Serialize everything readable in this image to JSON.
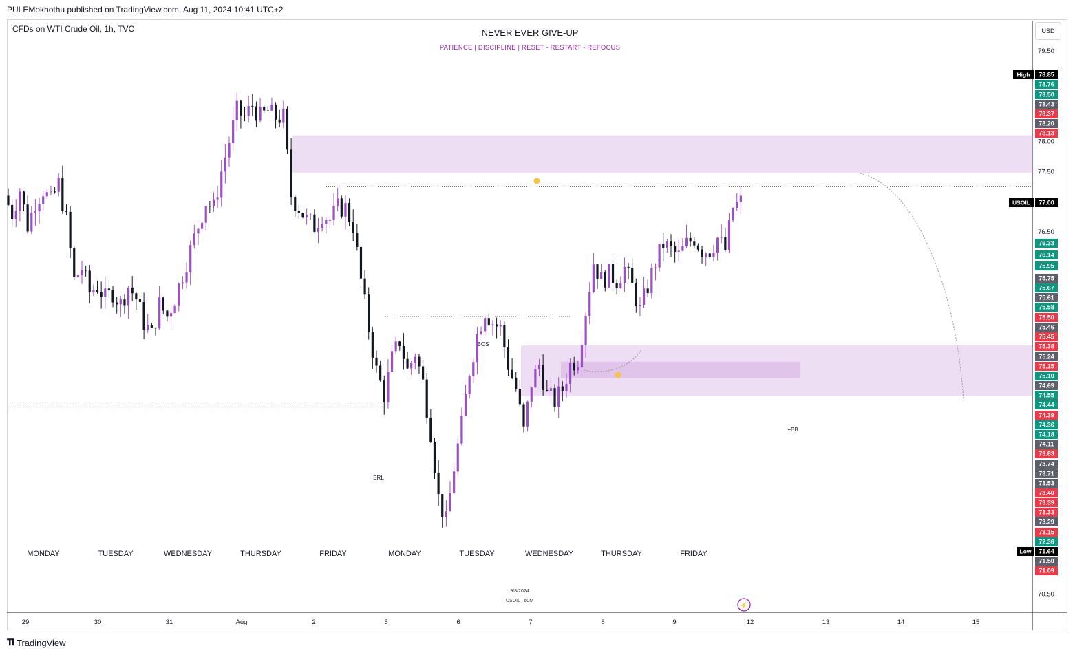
{
  "publisher": "PULEMokhothu published on TradingView.com, Aug 11, 2024 10:41 UTC+2",
  "symbol_line": "CFDs on WTI Crude Oil, 1h, TVC",
  "title": "NEVER EVER GIVE-UP",
  "subtitle": "PATIENCE   |   DISCIPLINE   |   RESET - RESTART - REFOCUS",
  "currency": "USD",
  "footer_brand": "TradingView",
  "colors": {
    "bull": "#9c4fc4",
    "bear": "#131722",
    "zone": "#e8d3ef",
    "zone_dark": "#dcbde6",
    "green": "#089981",
    "red": "#f23645",
    "gray": "#5d606b",
    "black": "#000000"
  },
  "chart_data": {
    "type": "candlestick",
    "interval": "1h",
    "ylim": [
      70.2,
      80.0
    ],
    "price_axis_ticks": [
      "79.50",
      "78.00",
      "77.50",
      "76.50",
      "70.50"
    ],
    "time_axis_ticks": [
      "29",
      "30",
      "31",
      "Aug",
      "2",
      "5",
      "6",
      "7",
      "8",
      "9",
      "12",
      "13",
      "14",
      "15"
    ],
    "day_labels": [
      "MONDAY",
      "TUESDAY",
      "WEDNESDAY",
      "THURSDAY",
      "FRIDAY",
      "MONDAY",
      "TUESDAY",
      "WEDNESDAY",
      "THURSDAY",
      "FRIDAY"
    ],
    "annotations": {
      "bos": "BOS",
      "erl": "ERL",
      "bb": "+BB",
      "date_stamp": "9/8/2024",
      "stamp_sub": "USOIL | 60M"
    },
    "zones": [
      {
        "from": 77.48,
        "to": 78.1
      },
      {
        "from": 73.78,
        "to": 74.62
      },
      {
        "from": 74.08,
        "to": 74.35
      }
    ],
    "levels": {
      "bos": 75.1,
      "erl": 73.6,
      "high_line": 77.25
    },
    "price_labels": [
      {
        "text": "High",
        "value": "78.85",
        "color": "black"
      },
      {
        "value": "78.76",
        "color": "green"
      },
      {
        "value": "78.50",
        "color": "green"
      },
      {
        "value": "78.43",
        "color": "gray"
      },
      {
        "value": "78.37",
        "color": "red"
      },
      {
        "value": "78.20",
        "color": "gray"
      },
      {
        "value": "78.13",
        "color": "red"
      },
      {
        "text": "USOIL",
        "value": "77.00",
        "color": "black"
      },
      {
        "value": "76.33",
        "color": "green"
      },
      {
        "value": "76.14",
        "color": "green"
      },
      {
        "value": "75.95",
        "color": "green"
      },
      {
        "value": "75.75",
        "color": "gray"
      },
      {
        "value": "75.67",
        "color": "green"
      },
      {
        "value": "75.61",
        "color": "gray"
      },
      {
        "value": "75.58",
        "color": "green"
      },
      {
        "value": "75.50",
        "color": "red"
      },
      {
        "value": "75.46",
        "color": "gray"
      },
      {
        "value": "75.45",
        "color": "red"
      },
      {
        "value": "75.38",
        "color": "red"
      },
      {
        "value": "75.24",
        "color": "gray"
      },
      {
        "value": "75.15",
        "color": "red"
      },
      {
        "value": "75.10",
        "color": "green"
      },
      {
        "value": "74.69",
        "color": "gray"
      },
      {
        "value": "74.55",
        "color": "green"
      },
      {
        "value": "74.44",
        "color": "green"
      },
      {
        "value": "74.39",
        "color": "red"
      },
      {
        "value": "74.36",
        "color": "green"
      },
      {
        "value": "74.18",
        "color": "green"
      },
      {
        "value": "74.11",
        "color": "gray"
      },
      {
        "value": "73.83",
        "color": "red"
      },
      {
        "value": "73.74",
        "color": "gray"
      },
      {
        "value": "73.71",
        "color": "gray"
      },
      {
        "value": "73.53",
        "color": "gray"
      },
      {
        "value": "73.40",
        "color": "red"
      },
      {
        "value": "73.39",
        "color": "red"
      },
      {
        "value": "73.33",
        "color": "red"
      },
      {
        "value": "73.29",
        "color": "gray"
      },
      {
        "value": "73.15",
        "color": "red"
      },
      {
        "value": "72.36",
        "color": "green"
      },
      {
        "text": "Low",
        "value": "71.64",
        "color": "black"
      },
      {
        "value": "71.50",
        "color": "gray"
      },
      {
        "value": "71.09",
        "color": "red"
      }
    ],
    "close_path": [
      [
        0,
        77.1
      ],
      [
        2,
        76.8
      ],
      [
        4,
        77.2
      ],
      [
        6,
        76.6
      ],
      [
        8,
        77.0
      ],
      [
        10,
        77.2
      ],
      [
        12,
        77.0
      ],
      [
        14,
        77.3
      ],
      [
        16,
        76.7
      ],
      [
        18,
        75.7
      ],
      [
        20,
        75.9
      ],
      [
        22,
        75.5
      ],
      [
        24,
        75.6
      ],
      [
        26,
        75.4
      ],
      [
        28,
        75.5
      ],
      [
        30,
        75.3
      ],
      [
        32,
        75.6
      ],
      [
        34,
        75.4
      ],
      [
        36,
        75.0
      ],
      [
        38,
        74.8
      ],
      [
        40,
        75.3
      ],
      [
        42,
        75.1
      ],
      [
        44,
        75.4
      ],
      [
        46,
        75.8
      ],
      [
        48,
        76.2
      ],
      [
        50,
        76.6
      ],
      [
        52,
        77.0
      ],
      [
        54,
        76.9
      ],
      [
        56,
        77.5
      ],
      [
        58,
        78.0
      ],
      [
        60,
        78.5
      ],
      [
        62,
        78.4
      ],
      [
        64,
        78.6
      ],
      [
        66,
        78.4
      ],
      [
        68,
        78.5
      ],
      [
        70,
        78.4
      ],
      [
        72,
        78.4
      ],
      [
        74,
        77.1
      ],
      [
        76,
        76.9
      ],
      [
        78,
        76.7
      ],
      [
        80,
        76.6
      ],
      [
        82,
        76.8
      ],
      [
        84,
        76.7
      ],
      [
        86,
        76.9
      ],
      [
        88,
        76.9
      ],
      [
        90,
        76.6
      ],
      [
        92,
        75.7
      ],
      [
        94,
        74.9
      ],
      [
        96,
        74.2
      ],
      [
        98,
        73.8
      ],
      [
        100,
        74.4
      ],
      [
        102,
        74.7
      ],
      [
        104,
        74.2
      ],
      [
        106,
        74.5
      ],
      [
        108,
        74.0
      ],
      [
        110,
        73.2
      ],
      [
        112,
        72.1
      ],
      [
        114,
        71.7
      ],
      [
        116,
        72.6
      ],
      [
        118,
        73.3
      ],
      [
        120,
        74.2
      ],
      [
        122,
        74.8
      ],
      [
        124,
        75.2
      ],
      [
        126,
        75.0
      ],
      [
        128,
        74.9
      ],
      [
        130,
        74.3
      ],
      [
        132,
        73.9
      ],
      [
        134,
        73.2
      ],
      [
        136,
        74.0
      ],
      [
        138,
        74.3
      ],
      [
        140,
        73.8
      ],
      [
        142,
        73.7
      ],
      [
        144,
        73.9
      ],
      [
        146,
        74.3
      ],
      [
        148,
        74.4
      ],
      [
        150,
        75.2
      ],
      [
        152,
        76.0
      ],
      [
        154,
        75.7
      ],
      [
        156,
        75.8
      ],
      [
        158,
        75.7
      ],
      [
        160,
        75.9
      ],
      [
        162,
        75.6
      ],
      [
        164,
        75.2
      ],
      [
        166,
        75.6
      ],
      [
        168,
        76.0
      ],
      [
        170,
        76.3
      ],
      [
        172,
        76.2
      ],
      [
        174,
        76.1
      ],
      [
        176,
        76.3
      ],
      [
        178,
        76.4
      ],
      [
        180,
        76.2
      ],
      [
        182,
        76.2
      ],
      [
        184,
        76.4
      ],
      [
        186,
        76.2
      ],
      [
        188,
        76.9
      ],
      [
        190,
        77.0
      ]
    ]
  }
}
